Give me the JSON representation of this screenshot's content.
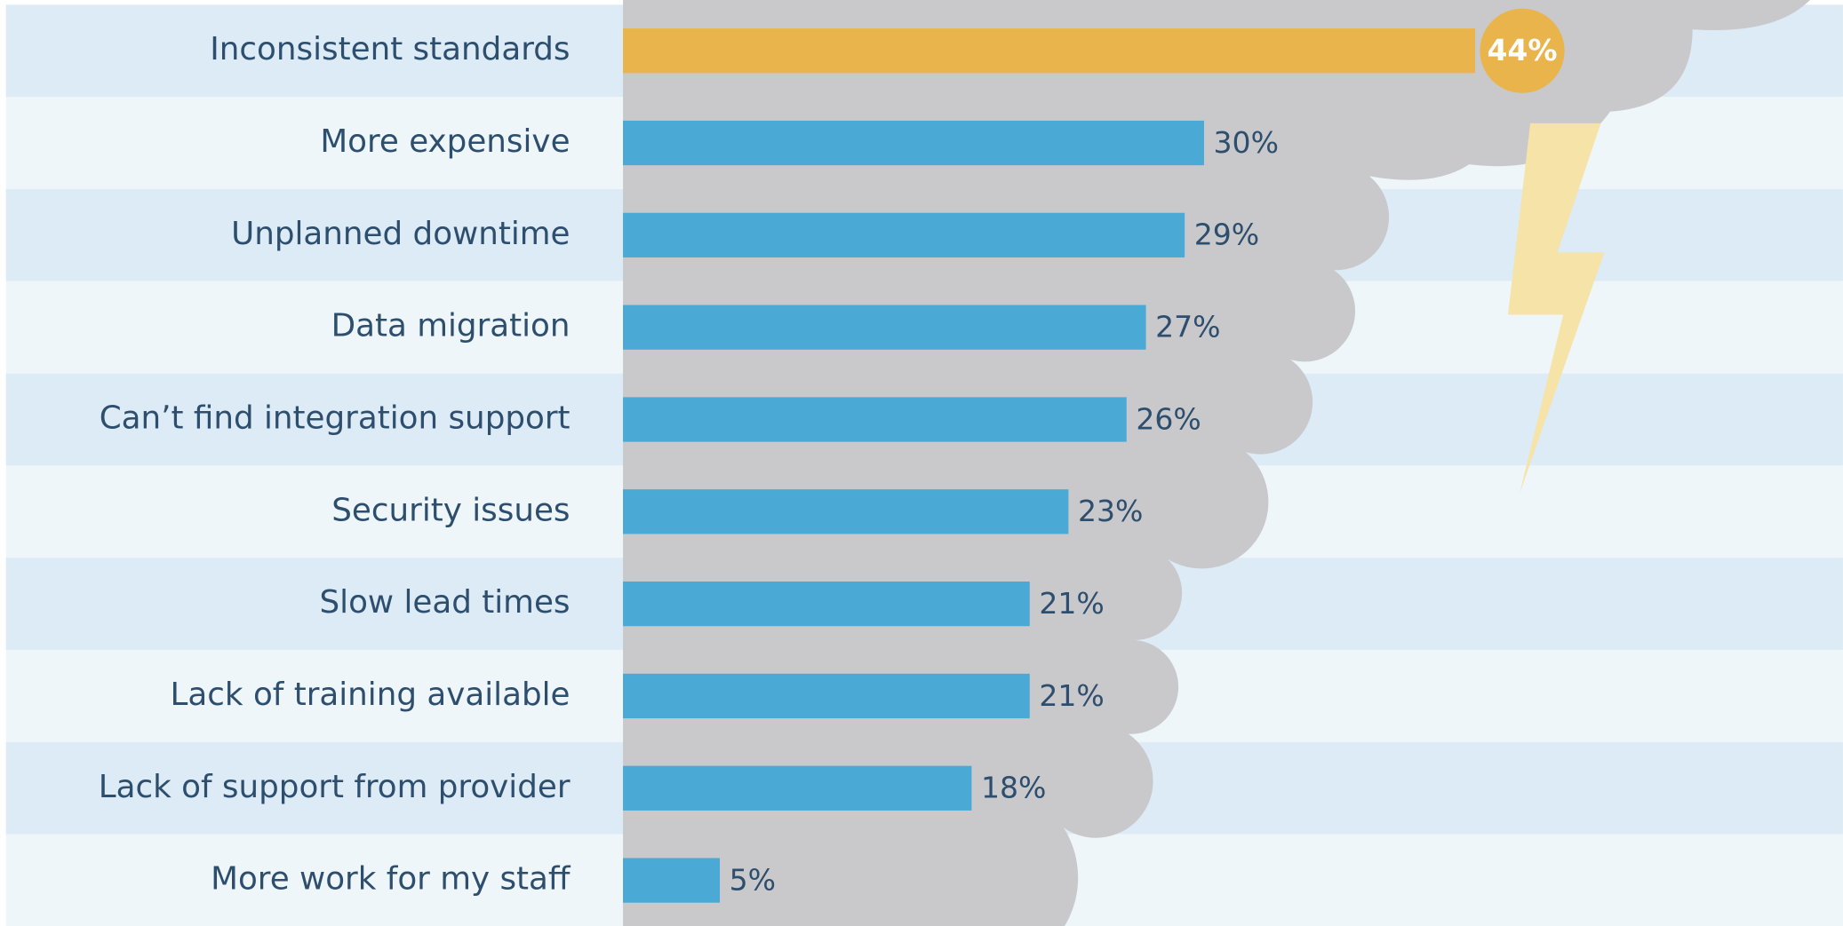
{
  "chart_data": {
    "type": "hbar",
    "categories": [
      "Inconsistent standards",
      "More expensive",
      "Unplanned downtime",
      "Data migration",
      "Can’t find integration support",
      "Security issues",
      "Slow lead times",
      "Lack of training available",
      "Lack of support from provider",
      "More work for my staff"
    ],
    "values": [
      44,
      30,
      29,
      27,
      26,
      23,
      21,
      21,
      18,
      5
    ],
    "value_labels": [
      "44%",
      "30%",
      "29%",
      "27%",
      "26%",
      "23%",
      "21%",
      "21%",
      "18%",
      "5%"
    ],
    "colors": [
      "#E9B44C",
      "#4BA9D6",
      "#4BA9D6",
      "#4BA9D6",
      "#4BA9D6",
      "#4BA9D6",
      "#4BA9D6",
      "#4BA9D6",
      "#4BA9D6",
      "#4BA9D6"
    ],
    "row_colors": [
      "#DCEBF5",
      "#EEF6FA"
    ]
  }
}
